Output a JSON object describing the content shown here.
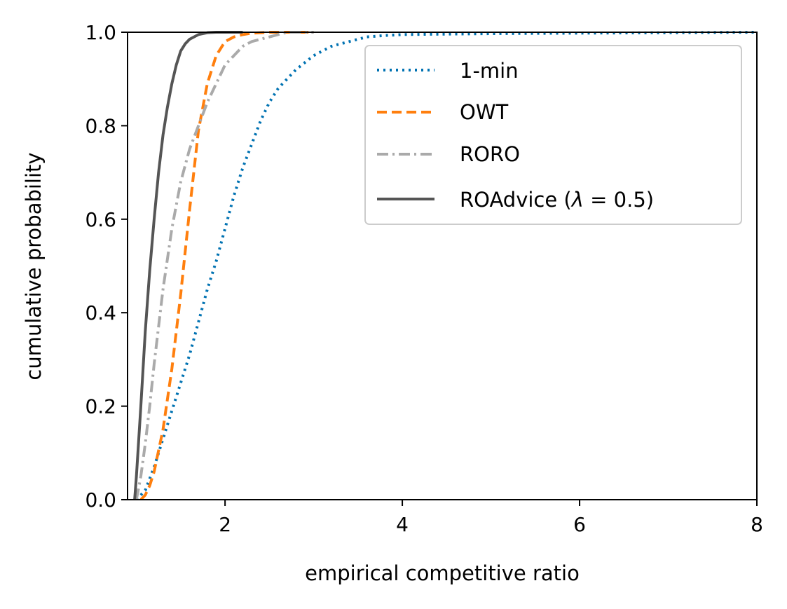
{
  "chart_data": {
    "type": "line",
    "title": "",
    "xlabel": "empirical competitive ratio",
    "ylabel": "cumulative probability",
    "xlim": [
      0.9,
      8
    ],
    "ylim": [
      0,
      1
    ],
    "xticks": [
      2,
      4,
      6,
      8
    ],
    "yticks": [
      0.0,
      0.2,
      0.4,
      0.6,
      0.8,
      1.0
    ],
    "xtick_labels": [
      "2",
      "4",
      "6",
      "8"
    ],
    "ytick_labels": [
      "0.0",
      "0.2",
      "0.4",
      "0.6",
      "0.8",
      "1.0"
    ],
    "grid": false,
    "legend_position": "top-right",
    "series": [
      {
        "name": "1-min",
        "color": "#0072b2",
        "style": "dotted",
        "x": [
          1.0,
          1.05,
          1.1,
          1.2,
          1.3,
          1.4,
          1.5,
          1.6,
          1.7,
          1.8,
          1.9,
          2.0,
          2.1,
          2.2,
          2.3,
          2.4,
          2.5,
          2.6,
          2.8,
          3.0,
          3.2,
          3.4,
          3.6,
          3.8,
          4.0,
          5.0,
          6.0,
          8.0
        ],
        "y": [
          0.0,
          0.01,
          0.02,
          0.07,
          0.13,
          0.19,
          0.25,
          0.31,
          0.38,
          0.45,
          0.51,
          0.58,
          0.65,
          0.71,
          0.76,
          0.81,
          0.85,
          0.88,
          0.92,
          0.95,
          0.97,
          0.98,
          0.99,
          0.993,
          0.995,
          0.997,
          0.998,
          1.0
        ]
      },
      {
        "name": "OWT",
        "color": "#ff7f0e",
        "style": "dashed",
        "x": [
          1.05,
          1.1,
          1.15,
          1.2,
          1.3,
          1.4,
          1.5,
          1.6,
          1.7,
          1.8,
          1.9,
          2.0,
          2.1,
          2.2,
          2.3,
          2.5,
          2.7,
          3.0
        ],
        "y": [
          0.0,
          0.01,
          0.03,
          0.06,
          0.15,
          0.28,
          0.44,
          0.62,
          0.79,
          0.89,
          0.95,
          0.98,
          0.99,
          0.995,
          0.998,
          1.0,
          1.0,
          1.0
        ]
      },
      {
        "name": "RORO",
        "color": "#aaaaaa",
        "style": "dashdot",
        "x": [
          1.0,
          1.05,
          1.1,
          1.15,
          1.2,
          1.3,
          1.4,
          1.5,
          1.6,
          1.7,
          1.8,
          1.9,
          2.0,
          2.1,
          2.2,
          2.3,
          2.5,
          2.7,
          3.0
        ],
        "y": [
          0.0,
          0.05,
          0.12,
          0.2,
          0.29,
          0.45,
          0.58,
          0.68,
          0.75,
          0.8,
          0.85,
          0.89,
          0.93,
          0.95,
          0.97,
          0.98,
          0.99,
          1.0,
          1.0
        ]
      },
      {
        "name": "ROAdvice (λ = 0.5)",
        "color": "#555555",
        "style": "solid",
        "x": [
          0.98,
          1.0,
          1.05,
          1.1,
          1.15,
          1.2,
          1.25,
          1.3,
          1.35,
          1.4,
          1.45,
          1.5,
          1.55,
          1.6,
          1.7,
          1.8,
          1.9,
          2.0,
          2.2
        ],
        "y": [
          0.0,
          0.05,
          0.2,
          0.36,
          0.49,
          0.6,
          0.7,
          0.78,
          0.84,
          0.89,
          0.93,
          0.96,
          0.975,
          0.985,
          0.995,
          0.999,
          1.0,
          1.0,
          1.0
        ]
      }
    ]
  },
  "legend": {
    "items": [
      {
        "label_main": "1-min",
        "label_tail": ""
      },
      {
        "label_main": "OWT",
        "label_tail": ""
      },
      {
        "label_main": "RORO",
        "label_tail": ""
      },
      {
        "label_main": "ROAdvice (",
        "label_tail": ")"
      }
    ],
    "lambda_symbol": "λ",
    "lambda_rest": " = 0.5"
  }
}
